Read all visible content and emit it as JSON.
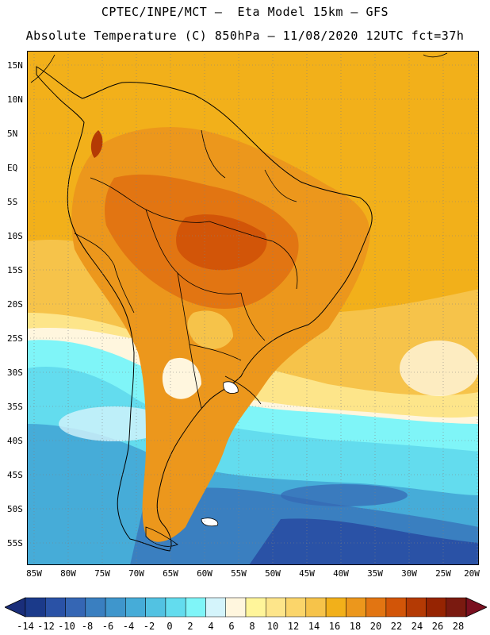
{
  "title": {
    "line1": "CPTEC/INPE/MCT –  Eta Model 15km – GFS",
    "line2": "Absolute Temperature (C) 850hPa – 11/08/2020 12UTC fct=37h"
  },
  "map": {
    "lat_labels": [
      "15N",
      "10N",
      "5N",
      "EQ",
      "5S",
      "10S",
      "15S",
      "20S",
      "25S",
      "30S",
      "35S",
      "40S",
      "45S",
      "50S",
      "55S"
    ],
    "lon_labels": [
      "85W",
      "80W",
      "75W",
      "70W",
      "65W",
      "60W",
      "55W",
      "50W",
      "45W",
      "40W",
      "35W",
      "30W",
      "25W",
      "20W"
    ]
  },
  "colorbar": {
    "labels": [
      "-14",
      "-12",
      "-10",
      "-8",
      "-6",
      "-4",
      "-2",
      "0",
      "2",
      "4",
      "6",
      "8",
      "10",
      "12",
      "14",
      "16",
      "18",
      "20",
      "22",
      "24",
      "26",
      "28"
    ],
    "colors": [
      "#1b3a8a",
      "#2a52a6",
      "#3566b4",
      "#3a7fc0",
      "#3f96cc",
      "#46acd8",
      "#52c2e2",
      "#63dcee",
      "#7ff5f8",
      "#d4f4fb",
      "#fff6de",
      "#fff59a",
      "#fde58a",
      "#fbd56a",
      "#f6c34a",
      "#f2b01a",
      "#ec971c",
      "#e27512",
      "#d25508",
      "#b43a04",
      "#962402",
      "#7a1a10"
    ],
    "min_color": "#1a2e7a",
    "max_color": "#7a1020"
  }
}
